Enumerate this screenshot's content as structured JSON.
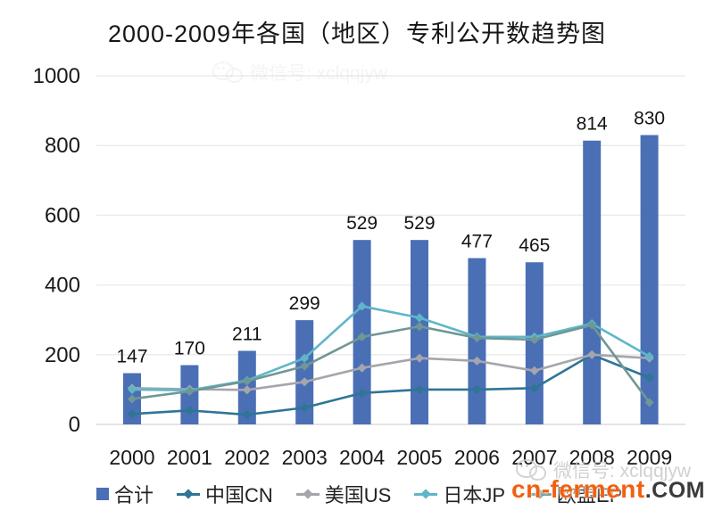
{
  "title": "2000-2009年各国（地区）专利公开数趋势图",
  "watermark": {
    "wechat_label": "微信号: xclqqjyw",
    "site_name": "cn-ferment",
    "site_tld": ".COM",
    "site_color": "#f2600f",
    "tld_color": "#3b3b3b"
  },
  "chart_data": {
    "type": "bar+line combo",
    "title": "2000-2009年各国（地区）专利公开数趋势图",
    "categories": [
      "2000",
      "2001",
      "2002",
      "2003",
      "2004",
      "2005",
      "2006",
      "2007",
      "2008",
      "2009"
    ],
    "bar_series": {
      "name": "合计",
      "color": "#4a6fb4",
      "values": [
        147,
        170,
        211,
        299,
        529,
        529,
        477,
        465,
        814,
        830
      ],
      "data_labels": [
        "147",
        "170",
        "211",
        "299",
        "529",
        "529",
        "477",
        "465",
        "814",
        "830"
      ]
    },
    "line_series": [
      {
        "name": "中国CN",
        "color": "#2e7596",
        "values": [
          30,
          40,
          28,
          48,
          90,
          100,
          100,
          104,
          200,
          134
        ]
      },
      {
        "name": "美国US",
        "color": "#a5a5ad",
        "values": [
          104,
          101,
          99,
          122,
          162,
          190,
          182,
          154,
          200,
          190
        ]
      },
      {
        "name": "日本JP",
        "color": "#5fb6c9",
        "values": [
          100,
          98,
          126,
          190,
          339,
          306,
          251,
          251,
          289,
          195
        ]
      },
      {
        "name": "欧盟EP",
        "color": "#6f9795",
        "values": [
          73,
          95,
          124,
          167,
          251,
          281,
          248,
          243,
          285,
          63
        ]
      }
    ],
    "ylabel": "",
    "xlabel": "",
    "ylim": [
      0,
      1000
    ],
    "yticks": [
      0,
      200,
      400,
      600,
      800,
      1000
    ],
    "grid": true,
    "legend_position": "bottom",
    "note": "line values estimated from gridlines; bar values from printed data labels"
  }
}
